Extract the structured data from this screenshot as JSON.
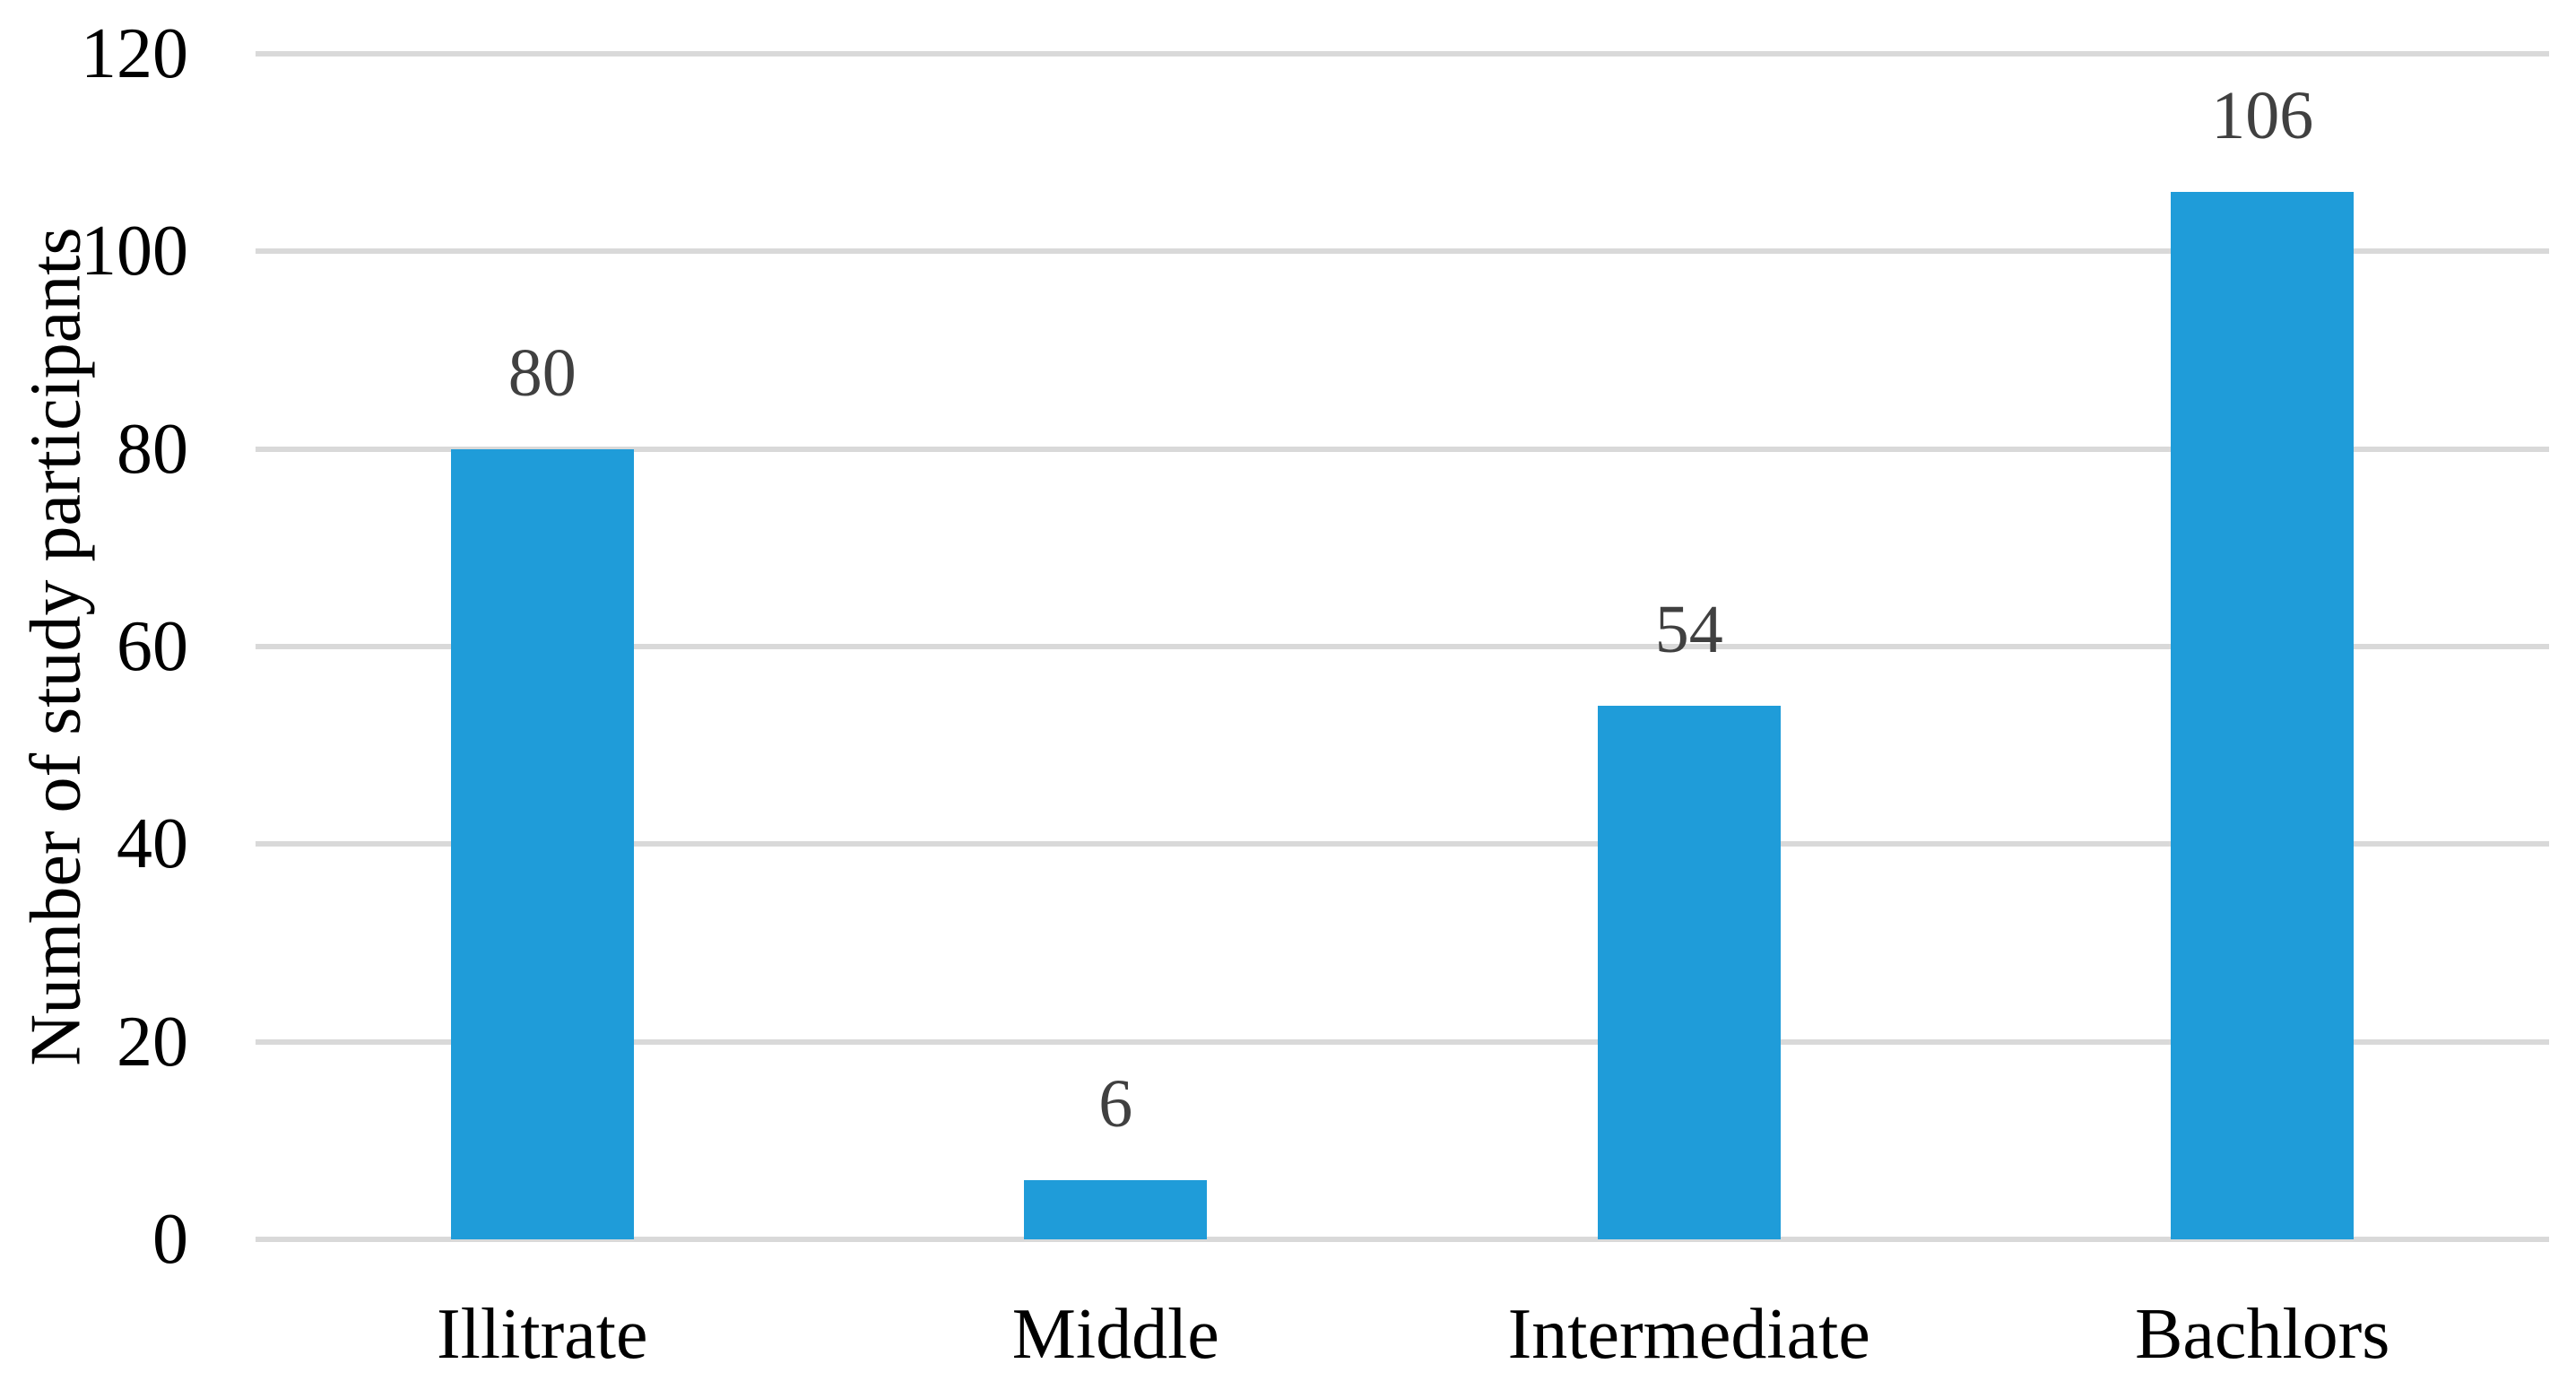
{
  "chart_data": {
    "type": "bar",
    "categories": [
      "Illitrate",
      "Middle",
      "Intermediate",
      "Bachlors"
    ],
    "values": [
      80,
      6,
      54,
      106
    ],
    "data_labels": [
      "80",
      "6",
      "54",
      "106"
    ],
    "title": "",
    "xlabel": "",
    "ylabel": "Number of study participants",
    "ylim": [
      0,
      120
    ],
    "yticks": [
      0,
      20,
      40,
      60,
      80,
      100,
      120
    ],
    "grid": true,
    "legend_position": "none",
    "bar_color": "#1F9CD9",
    "gridline_color": "#D9D9D9",
    "data_label_color": "#404040",
    "axis_text_color": "#000000",
    "background_color": "#FFFFFF"
  }
}
